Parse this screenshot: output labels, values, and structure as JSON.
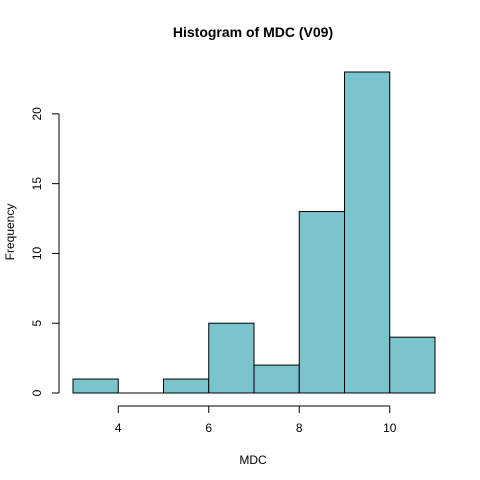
{
  "chart_data": {
    "type": "bar",
    "title": "Histogram of MDC (V09)",
    "xlabel": "MDC",
    "ylabel": "Frequency",
    "bin_edges": [
      3,
      4,
      5,
      6,
      7,
      8,
      9,
      10,
      11
    ],
    "values": [
      1,
      0,
      1,
      5,
      2,
      13,
      23,
      4
    ],
    "xlim": [
      3,
      11
    ],
    "ylim": [
      0,
      23
    ],
    "x_ticks": [
      4,
      6,
      8,
      10
    ],
    "y_ticks": [
      0,
      5,
      10,
      15,
      20
    ],
    "bar_color": "#7AC5CD",
    "grid": false,
    "legend": "none"
  }
}
